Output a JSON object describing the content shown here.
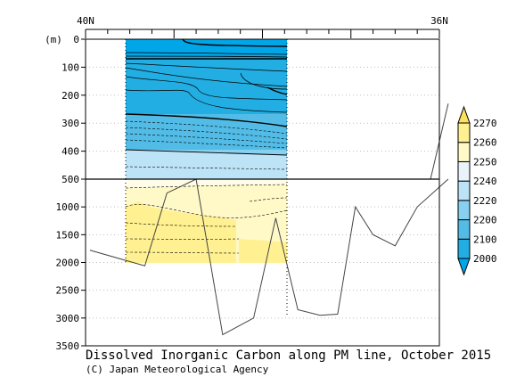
{
  "chart_data": {
    "type": "heatmap",
    "title": "Dissolved Inorganic Carbon along PM line, October 2015",
    "credit": "(C) Japan Meteorological Agency",
    "ylabel": "(m)",
    "x_labels": {
      "left": "40N",
      "right": "36N"
    },
    "x_range": [
      40,
      36
    ],
    "y_ticks_upper": [
      "0",
      "100",
      "200",
      "300",
      "400",
      "500"
    ],
    "y_ticks_lower": [
      "1000",
      "1500",
      "2000",
      "2500",
      "3000",
      "3500"
    ],
    "y_range_upper": [
      0,
      500
    ],
    "y_range_lower": [
      500,
      3500
    ],
    "colorbar": {
      "levels": [
        2000,
        2100,
        2200,
        2220,
        2240,
        2250,
        2260,
        2270
      ],
      "labels": [
        "2000",
        "2100",
        "2200",
        "2220",
        "2240",
        "2250",
        "2260",
        "2270"
      ],
      "colors": [
        "#00a6e8",
        "#22aee2",
        "#52bce6",
        "#88d0ef",
        "#bde3f6",
        "#e9f3fa",
        "#fff9c8",
        "#fff191",
        "#fbe15c"
      ],
      "extend": "both"
    },
    "section": {
      "x_start": 39.33,
      "x_end": 38.0
    },
    "bathymetry": {
      "lat": [
        39.95,
        39.33,
        39.08,
        38.75,
        38.45,
        38.1,
        37.85,
        37.6,
        37.35,
        37.15,
        36.95,
        36.75,
        36.5,
        36.25,
        35.9
      ],
      "depth": [
        1780,
        2060,
        750,
        500,
        3300,
        3000,
        1200,
        2850,
        2950,
        2930,
        1000,
        1500,
        1700,
        1000,
        500
      ]
    },
    "bathymetry_top": {
      "lat": [
        36.1,
        35.9
      ],
      "depth": [
        500,
        230
      ]
    }
  }
}
